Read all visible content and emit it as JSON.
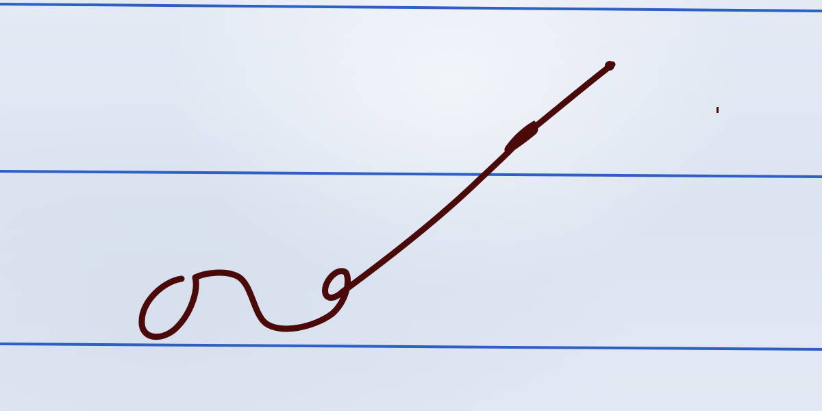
{
  "paper": {
    "background_color": "#dfe6f2",
    "rule_line_color": "#2f5fc4",
    "rule_line_count": 3
  },
  "ink": {
    "color": "#4a0a0a",
    "description_icon": "cursive-stroke-icon"
  }
}
